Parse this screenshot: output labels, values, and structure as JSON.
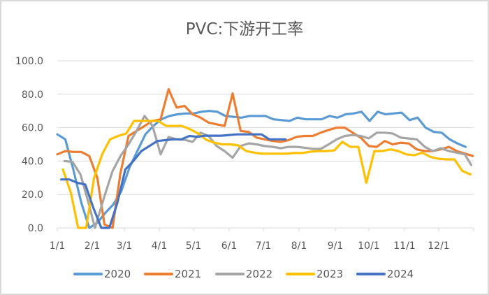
{
  "chart_data": {
    "type": "line",
    "title": "PVC:下游开工率",
    "xlabel": "",
    "ylabel": "",
    "ylim": [
      0,
      100
    ],
    "yticks": [
      "0.0",
      "20.0",
      "40.0",
      "60.0",
      "80.0",
      "100.0"
    ],
    "xticks": [
      "1/1",
      "2/1",
      "3/1",
      "4/1",
      "5/1",
      "6/1",
      "7/1",
      "8/1",
      "9/1",
      "10/1",
      "11/1",
      "12/1"
    ],
    "grid": true,
    "legend_position": "bottom",
    "x_unit": "week of year (0 = 1/1, ~52 per year)",
    "series": [
      {
        "name": "2020",
        "color": "#5B9BD5",
        "points": [
          [
            0,
            56
          ],
          [
            1,
            53
          ],
          [
            2,
            35
          ],
          [
            3,
            15
          ],
          [
            4,
            0
          ],
          [
            5,
            3
          ],
          [
            6,
            9
          ],
          [
            7,
            14
          ],
          [
            8,
            22
          ],
          [
            9,
            36
          ],
          [
            10,
            46
          ],
          [
            11,
            56
          ],
          [
            12,
            61
          ],
          [
            13,
            65
          ],
          [
            14,
            67
          ],
          [
            15,
            68
          ],
          [
            16,
            68.5
          ],
          [
            17,
            68.5
          ],
          [
            18,
            69.5
          ],
          [
            19,
            70
          ],
          [
            20,
            69.5
          ],
          [
            21,
            67
          ],
          [
            22,
            66.5
          ],
          [
            23,
            66
          ],
          [
            24,
            67
          ],
          [
            25,
            67
          ],
          [
            26,
            67
          ],
          [
            27,
            65
          ],
          [
            28,
            64.5
          ],
          [
            29,
            64
          ],
          [
            30,
            66
          ],
          [
            31,
            65
          ],
          [
            32,
            65
          ],
          [
            33,
            65
          ],
          [
            34,
            67
          ],
          [
            35,
            66
          ],
          [
            36,
            68
          ],
          [
            37,
            68.5
          ],
          [
            38,
            69.5
          ],
          [
            39,
            64
          ],
          [
            40,
            69.5
          ],
          [
            41,
            68
          ],
          [
            42,
            68.5
          ],
          [
            43,
            69
          ],
          [
            44,
            64.5
          ],
          [
            45,
            66
          ],
          [
            46,
            60
          ],
          [
            47,
            57.5
          ],
          [
            48,
            57
          ],
          [
            49,
            53
          ],
          [
            50,
            50.5
          ],
          [
            51,
            48.5
          ]
        ]
      },
      {
        "name": "2021",
        "color": "#ED7D31",
        "points": [
          [
            0,
            44
          ],
          [
            1,
            46
          ],
          [
            2,
            45.5
          ],
          [
            3,
            45.5
          ],
          [
            4,
            43
          ],
          [
            5,
            30
          ],
          [
            5.9,
            2
          ],
          [
            6.9,
            0
          ],
          [
            7.9,
            33
          ],
          [
            8.9,
            55
          ],
          [
            9.9,
            58
          ],
          [
            10.9,
            61
          ],
          [
            11.9,
            64
          ],
          [
            12.9,
            65
          ],
          [
            13.9,
            83
          ],
          [
            14.9,
            72
          ],
          [
            15.9,
            73
          ],
          [
            16.9,
            68
          ],
          [
            17.9,
            66
          ],
          [
            18.9,
            63
          ],
          [
            19.9,
            62
          ],
          [
            20.9,
            61
          ],
          [
            21.9,
            80.5
          ],
          [
            22.9,
            58
          ],
          [
            23.9,
            57.5
          ],
          [
            24.9,
            54
          ],
          [
            25.9,
            53
          ],
          [
            26.9,
            52
          ],
          [
            27.9,
            51.5
          ],
          [
            28.9,
            52.5
          ],
          [
            29.9,
            54.5
          ],
          [
            30.9,
            55
          ],
          [
            31.9,
            55
          ],
          [
            32.9,
            57
          ],
          [
            33.9,
            58.6
          ],
          [
            34.9,
            60
          ],
          [
            35.9,
            60
          ],
          [
            36.9,
            57
          ],
          [
            37.9,
            54
          ],
          [
            38.9,
            49
          ],
          [
            39.9,
            48.5
          ],
          [
            40.9,
            52
          ],
          [
            41.9,
            50
          ],
          [
            42.9,
            51
          ],
          [
            43.9,
            50.5
          ],
          [
            44.9,
            47
          ],
          [
            45.9,
            46
          ],
          [
            46.9,
            46
          ],
          [
            47.9,
            47
          ],
          [
            48.9,
            48.5
          ],
          [
            49.9,
            46
          ],
          [
            50.9,
            44.5
          ],
          [
            51.9,
            43
          ]
        ]
      },
      {
        "name": "2022",
        "color": "#A5A5A5",
        "points": [
          [
            0.9,
            40
          ],
          [
            1.9,
            39.5
          ],
          [
            2.9,
            32
          ],
          [
            3.9,
            15
          ],
          [
            4.7,
            0
          ],
          [
            5.9,
            19
          ],
          [
            6.9,
            34
          ],
          [
            7.9,
            43
          ],
          [
            8.9,
            50
          ],
          [
            9.9,
            58
          ],
          [
            10.9,
            67
          ],
          [
            11.9,
            61
          ],
          [
            12.9,
            44
          ],
          [
            13.9,
            54.4
          ],
          [
            14.9,
            53
          ],
          [
            15.9,
            52.7
          ],
          [
            16.9,
            51.5
          ],
          [
            17.9,
            57
          ],
          [
            18.9,
            55
          ],
          [
            19.9,
            49
          ],
          [
            20.9,
            46
          ],
          [
            21.9,
            42
          ],
          [
            22.9,
            49
          ],
          [
            23.9,
            50.6
          ],
          [
            24.9,
            50
          ],
          [
            25.9,
            49
          ],
          [
            26.9,
            48.5
          ],
          [
            27.9,
            47.7
          ],
          [
            28.9,
            48.5
          ],
          [
            29.9,
            48.5
          ],
          [
            30.9,
            48
          ],
          [
            31.9,
            47.3
          ],
          [
            32.9,
            47.3
          ],
          [
            33.9,
            50
          ],
          [
            34.9,
            53
          ],
          [
            35.9,
            55
          ],
          [
            36.9,
            55.6
          ],
          [
            37.9,
            55
          ],
          [
            38.9,
            53.6
          ],
          [
            39.9,
            57
          ],
          [
            40.9,
            57
          ],
          [
            41.9,
            56.5
          ],
          [
            42.9,
            54
          ],
          [
            43.9,
            53.5
          ],
          [
            44.9,
            53
          ],
          [
            45.9,
            48.5
          ],
          [
            46.9,
            46
          ],
          [
            47.9,
            47.7
          ],
          [
            48.9,
            46
          ],
          [
            49.9,
            45
          ],
          [
            50.9,
            44
          ],
          [
            51.7,
            37.6
          ]
        ]
      },
      {
        "name": "2023",
        "color": "#FFC000",
        "points": [
          [
            0.7,
            35
          ],
          [
            1.7,
            21
          ],
          [
            2.6,
            0
          ],
          [
            3.6,
            0
          ],
          [
            4.6,
            30
          ],
          [
            5.6,
            44
          ],
          [
            6.6,
            53
          ],
          [
            7.6,
            55
          ],
          [
            8.6,
            56.5
          ],
          [
            9.6,
            64
          ],
          [
            10.6,
            64
          ],
          [
            11.6,
            64
          ],
          [
            12.6,
            64
          ],
          [
            13.6,
            61
          ],
          [
            14.6,
            61
          ],
          [
            15.6,
            61
          ],
          [
            16.6,
            59
          ],
          [
            17.6,
            56.5
          ],
          [
            18.6,
            52.7
          ],
          [
            19.6,
            51
          ],
          [
            20.6,
            50
          ],
          [
            21.6,
            50
          ],
          [
            22.6,
            49.4
          ],
          [
            23.6,
            46
          ],
          [
            24.6,
            45
          ],
          [
            25.6,
            44.4
          ],
          [
            26.6,
            44.4
          ],
          [
            27.6,
            44.4
          ],
          [
            28.6,
            44.4
          ],
          [
            29.6,
            44.8
          ],
          [
            30.6,
            44.8
          ],
          [
            31.6,
            45.6
          ],
          [
            32.6,
            46
          ],
          [
            33.6,
            46
          ],
          [
            34.6,
            46.4
          ],
          [
            35.6,
            51.5
          ],
          [
            36.6,
            48.5
          ],
          [
            37.6,
            48.5
          ],
          [
            38.6,
            27
          ],
          [
            39.6,
            46
          ],
          [
            40.6,
            46
          ],
          [
            41.6,
            47
          ],
          [
            42.6,
            46
          ],
          [
            43.6,
            44
          ],
          [
            44.6,
            43.5
          ],
          [
            45.6,
            45
          ],
          [
            46.6,
            42.5
          ],
          [
            47.6,
            41.4
          ],
          [
            48.6,
            41
          ],
          [
            49.6,
            41
          ],
          [
            50.6,
            34
          ],
          [
            51.6,
            32
          ]
        ]
      },
      {
        "name": "2024",
        "color": "#4472C4",
        "points": [
          [
            0.5,
            29
          ],
          [
            1.5,
            29
          ],
          [
            2.5,
            27
          ],
          [
            3.5,
            26
          ],
          [
            4.5,
            12
          ],
          [
            5.5,
            0
          ],
          [
            6.5,
            0
          ],
          [
            7.5,
            15
          ],
          [
            8.5,
            35
          ],
          [
            9.5,
            40
          ],
          [
            10.5,
            46
          ],
          [
            11.5,
            49
          ],
          [
            12.5,
            52
          ],
          [
            13.5,
            52.5
          ],
          [
            14.5,
            53
          ],
          [
            15.5,
            53
          ],
          [
            16.5,
            55
          ],
          [
            17.5,
            54.5
          ],
          [
            18.5,
            55.2
          ],
          [
            19.5,
            55.2
          ],
          [
            20.5,
            55.2
          ],
          [
            21.5,
            55.6
          ],
          [
            22.5,
            56
          ],
          [
            23.5,
            56
          ],
          [
            24.5,
            56
          ],
          [
            25.5,
            56
          ],
          [
            26.5,
            53
          ],
          [
            27.5,
            53
          ],
          [
            28.5,
            53
          ]
        ]
      }
    ]
  },
  "legend": [
    {
      "label": "2020",
      "color": "#5B9BD5"
    },
    {
      "label": "2021",
      "color": "#ED7D31"
    },
    {
      "label": "2022",
      "color": "#A5A5A5"
    },
    {
      "label": "2023",
      "color": "#FFC000"
    },
    {
      "label": "2024",
      "color": "#4472C4"
    }
  ]
}
